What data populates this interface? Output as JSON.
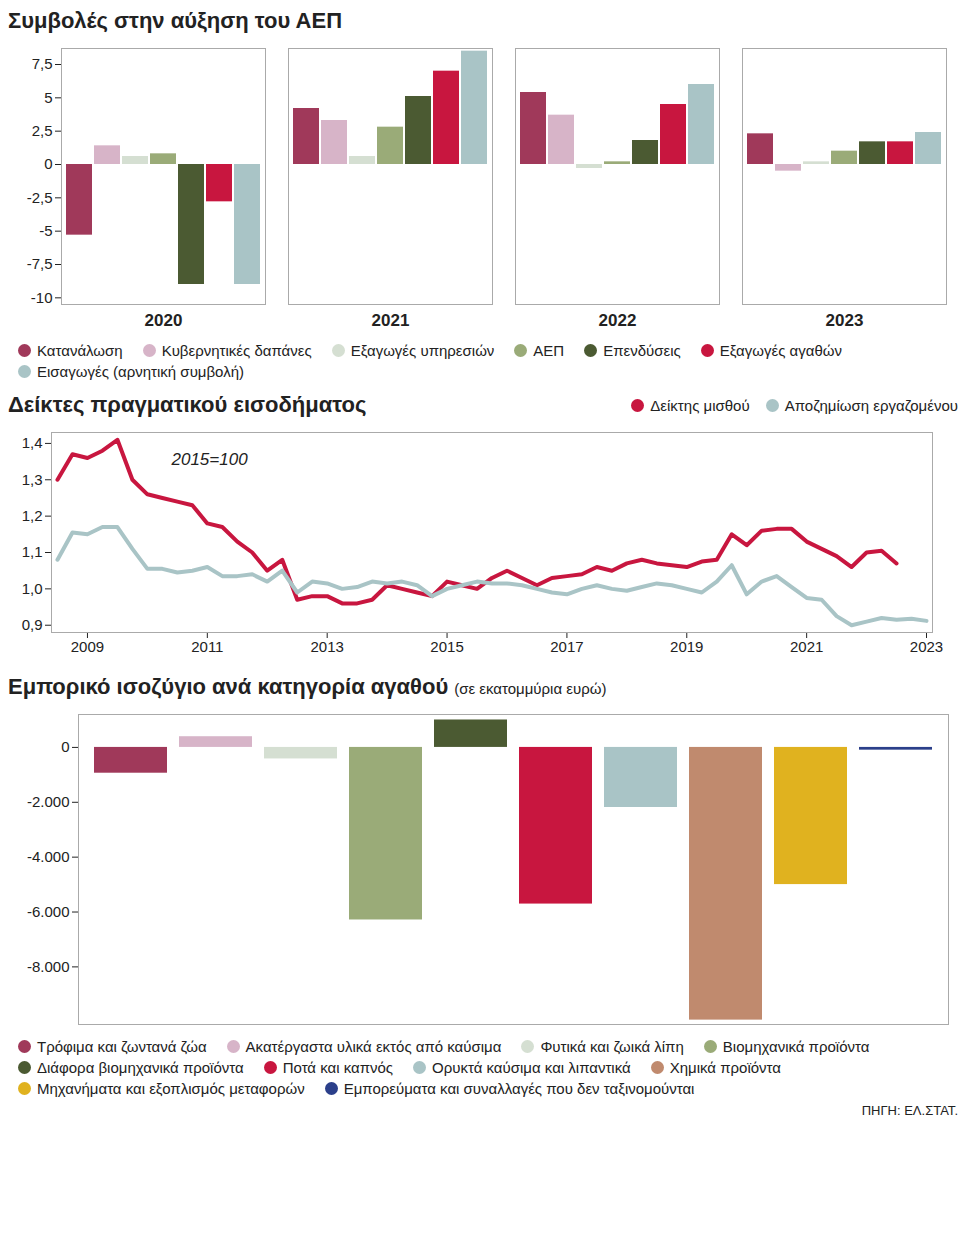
{
  "chart_data": [
    {
      "type": "bar",
      "title": "Συμβολές στην αύξηση του ΑΕΠ",
      "categories": [
        "2020",
        "2021",
        "2022",
        "2023"
      ],
      "series": [
        {
          "name": "Κατανάλωση",
          "color": "#a0395a",
          "values": [
            -5.3,
            4.2,
            5.4,
            2.3
          ]
        },
        {
          "name": "Κυβερνητικές δαπάνες",
          "color": "#d7b4c8",
          "values": [
            1.4,
            3.3,
            3.7,
            -0.5
          ]
        },
        {
          "name": "Εξαγωγές υπηρεσιών",
          "color": "#d5dfd2",
          "values": [
            0.6,
            0.6,
            -0.3,
            0.2
          ]
        },
        {
          "name": "ΑΕΠ",
          "color": "#9aab78",
          "values": [
            0.8,
            2.8,
            0.2,
            1.0
          ]
        },
        {
          "name": "Επενδύσεις",
          "color": "#4b5a32",
          "values": [
            -9.0,
            5.1,
            1.8,
            1.7
          ]
        },
        {
          "name": "Εξαγωγές αγαθών",
          "color": "#c8163f",
          "values": [
            -2.8,
            7.0,
            4.5,
            1.7
          ]
        },
        {
          "name": "Εισαγωγές (αρνητική συμβολή)",
          "color": "#a9c4c6",
          "values": [
            -9.0,
            8.5,
            6.0,
            2.4
          ]
        }
      ],
      "ylim": [
        -10.5,
        8.7
      ],
      "yticks": [
        -10,
        {
          "value": -7.5,
          "label": "-7,5"
        },
        -5,
        {
          "value": -2.5,
          "label": "-2,5"
        },
        0,
        {
          "value": 2.5,
          "label": "2,5"
        },
        5,
        {
          "value": 7.5,
          "label": "7,5"
        }
      ],
      "grid": false,
      "legend": "bottom"
    },
    {
      "type": "line",
      "title": "Δείκτες πραγματικού εισοδήματος",
      "annotation": "2015=100",
      "x": [
        2008.5,
        2008.75,
        2009,
        2009.25,
        2009.5,
        2009.75,
        2010,
        2010.25,
        2010.5,
        2010.75,
        2011,
        2011.25,
        2011.5,
        2011.75,
        2012,
        2012.25,
        2012.5,
        2012.75,
        2013,
        2013.25,
        2013.5,
        2013.75,
        2014,
        2014.25,
        2014.5,
        2014.75,
        2015,
        2015.25,
        2015.5,
        2015.75,
        2016,
        2016.25,
        2016.5,
        2016.75,
        2017,
        2017.25,
        2017.5,
        2017.75,
        2018,
        2018.25,
        2018.5,
        2018.75,
        2019,
        2019.25,
        2019.5,
        2019.75,
        2020,
        2020.25,
        2020.5,
        2020.75,
        2021,
        2021.25,
        2021.5,
        2021.75,
        2022,
        2022.25,
        2022.5,
        2022.75,
        2023
      ],
      "series": [
        {
          "name": "Δείκτης μισθού",
          "color": "#c8163f",
          "values": [
            1.3,
            1.37,
            1.36,
            1.38,
            1.41,
            1.3,
            1.26,
            1.25,
            1.24,
            1.23,
            1.18,
            1.17,
            1.13,
            1.1,
            1.05,
            1.08,
            0.97,
            0.98,
            0.98,
            0.96,
            0.96,
            0.97,
            1.01,
            1.0,
            0.99,
            0.98,
            1.02,
            1.01,
            1.0,
            1.03,
            1.05,
            1.03,
            1.01,
            1.03,
            1.035,
            1.04,
            1.06,
            1.05,
            1.07,
            1.08,
            1.07,
            1.065,
            1.06,
            1.075,
            1.08,
            1.15,
            1.12,
            1.16,
            1.165,
            1.165,
            1.13,
            1.11,
            1.09,
            1.06,
            1.1,
            1.105,
            1.07,
            null,
            null
          ]
        },
        {
          "name": "Αποζημίωση εργαζομένου",
          "color": "#a9c4c6",
          "values": [
            1.08,
            1.155,
            1.15,
            1.17,
            1.17,
            1.11,
            1.055,
            1.055,
            1.045,
            1.05,
            1.06,
            1.035,
            1.035,
            1.04,
            1.02,
            1.05,
            0.99,
            1.02,
            1.015,
            1.0,
            1.005,
            1.02,
            1.015,
            1.02,
            1.01,
            0.98,
            1.0,
            1.01,
            1.02,
            1.015,
            1.015,
            1.01,
            1.0,
            0.99,
            0.985,
            1.0,
            1.01,
            1.0,
            0.995,
            1.005,
            1.015,
            1.01,
            1.0,
            0.99,
            1.02,
            1.065,
            0.985,
            1.02,
            1.035,
            1.005,
            0.975,
            0.97,
            0.925,
            0.9,
            0.91,
            0.92,
            0.915,
            0.918,
            0.912
          ]
        }
      ],
      "xlim": [
        2008.4,
        2023.1
      ],
      "xticks": [
        2009,
        2011,
        2013,
        2015,
        2017,
        2019,
        2021,
        2023
      ],
      "ylim": [
        0.88,
        1.43
      ],
      "yticks": [
        {
          "value": 0.9,
          "label": "0,9"
        },
        {
          "value": 1.0,
          "label": "1,0"
        },
        {
          "value": 1.1,
          "label": "1,1"
        },
        {
          "value": 1.2,
          "label": "1,2"
        },
        {
          "value": 1.3,
          "label": "1,3"
        },
        {
          "value": 1.4,
          "label": "1,4"
        }
      ],
      "grid": false,
      "legend": "top-right"
    },
    {
      "type": "bar",
      "title": "Εμπορικό ισοζύγιο ανά κατηγορία αγαθού",
      "subtitle": "(σε εκατομμύρια ευρώ)",
      "categories": [
        "Τρόφιμα και ζωντανά ζώα",
        "Ακατέργαστα υλικά εκτός από καύσιμα",
        "Φυτικά και ζωικά λίπη",
        "Βιομηχανικά προϊόντα",
        "Διάφορα βιομηχανικά προϊόντα",
        "Ποτά και καπνός",
        "Ορυκτά καύσιμα και λιπαντικά",
        "Χημικά προϊόντα",
        "Μηχανήματα και εξοπλισμός μεταφορών",
        "Εμπορεύματα και συναλλαγές που δεν ταξινομούνται"
      ],
      "values": [
        -940,
        390,
        -420,
        -6290,
        1000,
        -5710,
        -2190,
        -9940,
        -5000,
        -100
      ],
      "colors": [
        "#a0395a",
        "#d7b4c8",
        "#d5dfd2",
        "#9aab78",
        "#4b5a32",
        "#c8163f",
        "#a9c4c6",
        "#c08a6e",
        "#e0b21f",
        "#2b3f8a"
      ],
      "ylim": [
        -10100,
        1200
      ],
      "yticks": [
        0,
        {
          "value": -2000,
          "label": "-2.000"
        },
        {
          "value": -4000,
          "label": "-4.000"
        },
        {
          "value": -6000,
          "label": "-6.000"
        },
        {
          "value": -8000,
          "label": "-8.000"
        }
      ],
      "tick_labels": "y",
      "grid": false,
      "legend": "bottom",
      "source": "ΠΗΓΗ: ΕΛ.ΣΤΑΤ."
    }
  ]
}
